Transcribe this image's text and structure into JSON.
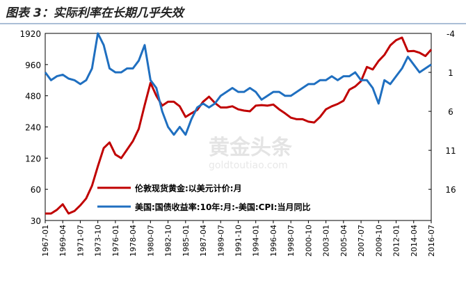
{
  "chart_data": {
    "type": "line",
    "title": "图表 3：实际利率在长期几乎失效",
    "watermark": "黄金头条",
    "watermark_sub": "goldtoutiao.com",
    "categories": [
      "1967-01",
      null,
      null,
      "1969-04",
      null,
      null,
      "1971-07",
      null,
      null,
      "1973-10",
      null,
      null,
      "1976-01",
      null,
      null,
      "1978-04",
      null,
      null,
      "1980-07",
      null,
      null,
      "1982-10",
      null,
      null,
      "1985-01",
      null,
      null,
      "1987-04",
      null,
      null,
      "1989-07",
      null,
      null,
      "1991-10",
      null,
      null,
      "1994-01",
      null,
      null,
      "1996-04",
      null,
      null,
      "1998-07",
      null,
      null,
      "2000-10",
      null,
      null,
      "2003-01",
      null,
      null,
      "2005-04",
      null,
      null,
      "2007-07",
      null,
      null,
      "2009-10",
      null,
      null,
      "2012-01",
      null,
      null,
      "2014-04",
      null,
      null,
      "2016-07"
    ],
    "series": [
      {
        "name": "伦敦现货黄金:以美元计价:月",
        "color": "#c00000",
        "axis": "y",
        "values": [
          35,
          35,
          38,
          43,
          35,
          37,
          42,
          49,
          65,
          100,
          150,
          170,
          130,
          120,
          145,
          175,
          230,
          390,
          640,
          480,
          385,
          420,
          420,
          380,
          300,
          325,
          350,
          420,
          470,
          410,
          370,
          370,
          380,
          355,
          345,
          340,
          385,
          390,
          385,
          395,
          355,
          325,
          295,
          285,
          285,
          270,
          265,
          300,
          355,
          380,
          400,
          430,
          550,
          590,
          665,
          910,
          860,
          1040,
          1190,
          1470,
          1650,
          1750,
          1290,
          1300,
          1250,
          1160,
          1340
        ]
      },
      {
        "name": "美国:国债收益率:10年:月:-美国:CPI:当月同比",
        "color": "#1f6fc0",
        "axis": "y2",
        "values": [
          1.0,
          2.0,
          1.5,
          1.3,
          1.8,
          2.0,
          2.5,
          2.0,
          0.5,
          -4.0,
          -2.5,
          0.5,
          1.0,
          1.0,
          0.5,
          0.5,
          -0.5,
          -2.5,
          2.0,
          3.0,
          6.0,
          8.0,
          9.0,
          8.0,
          9.0,
          7.0,
          5.5,
          5.0,
          5.5,
          5.0,
          4.0,
          3.5,
          3.0,
          3.5,
          3.5,
          3.0,
          3.5,
          4.5,
          4.0,
          3.5,
          3.5,
          4.0,
          4.0,
          3.5,
          3.0,
          2.5,
          2.5,
          2.0,
          2.0,
          1.5,
          2.0,
          1.5,
          1.5,
          1.0,
          2.0,
          2.0,
          3.0,
          5.0,
          2.0,
          2.5,
          1.5,
          0.5,
          -1.0,
          0.0,
          1.0,
          0.5,
          0.0
        ]
      }
    ],
    "ylim": [
      30,
      1920
    ],
    "yticks": [
      30,
      60,
      120,
      240,
      480,
      960,
      1920
    ],
    "ylog": true,
    "y2lim": [
      -4,
      20
    ],
    "y2ticks": [
      -4,
      1,
      6,
      11,
      16
    ],
    "y2_inverted": true
  }
}
